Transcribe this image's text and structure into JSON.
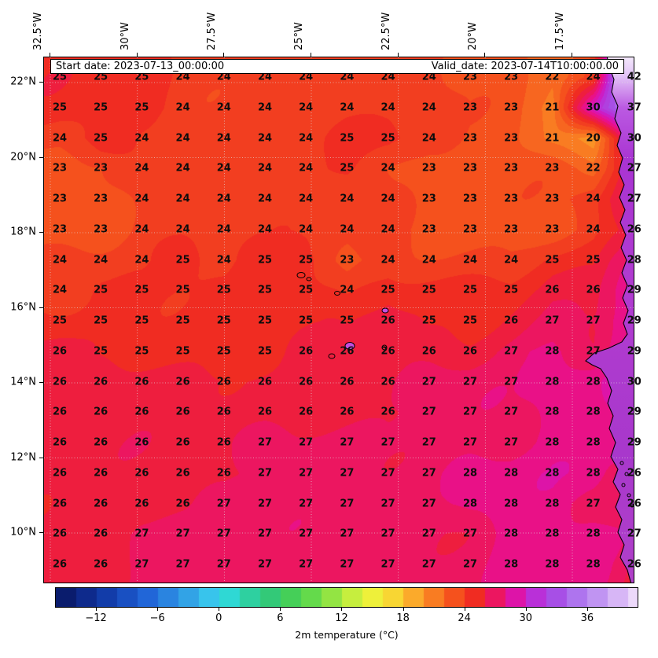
{
  "annotation": {
    "start_date": "Start date: 2023-07-13_00:00:00",
    "valid_date": "Valid_date: 2023-07-14T10:00:00.00"
  },
  "colorbar": {
    "label": "2m temperature (°C)",
    "tick_labels": [
      "−12",
      "−6",
      "0",
      "6",
      "12",
      "18",
      "24",
      "30",
      "36"
    ],
    "tick_values": [
      -12,
      -6,
      0,
      6,
      12,
      18,
      24,
      30,
      36
    ],
    "domain": [
      -16,
      41
    ]
  },
  "chart_data": {
    "type": "heatmap",
    "title": "",
    "units": "°C",
    "x_tick_labels": [
      "32.5°W",
      "30°W",
      "27.5°W",
      "25°W",
      "22.5°W",
      "20°W",
      "17.5°W"
    ],
    "y_tick_labels": [
      "22°N",
      "20°N",
      "18°N",
      "16°N",
      "14°N",
      "12°N",
      "10°N"
    ],
    "lon_ticks_deg_w": [
      32.5,
      30,
      27.5,
      25,
      22.5,
      20,
      17.5
    ],
    "lat_ticks_deg_n": [
      22,
      20,
      18,
      16,
      14,
      12,
      10
    ],
    "values_c": [
      [
        25,
        25,
        25,
        24,
        24,
        24,
        24,
        24,
        24,
        24,
        23,
        23,
        22,
        24,
        42
      ],
      [
        25,
        25,
        25,
        24,
        24,
        24,
        24,
        24,
        24,
        24,
        23,
        23,
        21,
        30,
        37
      ],
      [
        24,
        25,
        24,
        24,
        24,
        24,
        24,
        25,
        25,
        24,
        23,
        23,
        21,
        20,
        30
      ],
      [
        23,
        23,
        24,
        24,
        24,
        24,
        24,
        25,
        24,
        23,
        23,
        23,
        23,
        22,
        27
      ],
      [
        23,
        23,
        24,
        24,
        24,
        24,
        24,
        24,
        24,
        23,
        23,
        23,
        23,
        24,
        27
      ],
      [
        23,
        23,
        24,
        24,
        24,
        24,
        24,
        24,
        24,
        23,
        23,
        23,
        23,
        24,
        26
      ],
      [
        24,
        24,
        24,
        25,
        24,
        25,
        25,
        23,
        24,
        24,
        24,
        24,
        25,
        25,
        28
      ],
      [
        24,
        25,
        25,
        25,
        25,
        25,
        25,
        24,
        25,
        25,
        25,
        25,
        26,
        26,
        29
      ],
      [
        25,
        25,
        25,
        25,
        25,
        25,
        25,
        25,
        26,
        25,
        25,
        26,
        27,
        27,
        29
      ],
      [
        26,
        25,
        25,
        25,
        25,
        25,
        26,
        26,
        26,
        26,
        26,
        27,
        28,
        27,
        29
      ],
      [
        26,
        26,
        26,
        26,
        26,
        26,
        26,
        26,
        26,
        27,
        27,
        27,
        28,
        28,
        30
      ],
      [
        26,
        26,
        26,
        26,
        26,
        26,
        26,
        26,
        26,
        27,
        27,
        27,
        28,
        28,
        29
      ],
      [
        26,
        26,
        26,
        26,
        26,
        27,
        27,
        27,
        27,
        27,
        27,
        27,
        28,
        28,
        29
      ],
      [
        26,
        26,
        26,
        26,
        26,
        27,
        27,
        27,
        27,
        27,
        28,
        28,
        28,
        28,
        26
      ],
      [
        26,
        26,
        26,
        26,
        27,
        27,
        27,
        27,
        27,
        27,
        28,
        28,
        28,
        27,
        26
      ],
      [
        26,
        26,
        27,
        27,
        27,
        27,
        27,
        27,
        27,
        27,
        27,
        28,
        28,
        28,
        27
      ],
      [
        26,
        26,
        27,
        27,
        27,
        27,
        27,
        27,
        27,
        27,
        27,
        28,
        28,
        28,
        26
      ]
    ],
    "colormap_stops": [
      [
        -16,
        "#08155e"
      ],
      [
        -13,
        "#0e2a8c"
      ],
      [
        -10,
        "#1545b8"
      ],
      [
        -7,
        "#2166d8"
      ],
      [
        -4,
        "#2f93e4"
      ],
      [
        -1,
        "#38c4ec"
      ],
      [
        1,
        "#2fd8d4"
      ],
      [
        3,
        "#2ed0a0"
      ],
      [
        5,
        "#33c978"
      ],
      [
        7,
        "#45cf58"
      ],
      [
        9,
        "#64da4b"
      ],
      [
        11,
        "#93e443"
      ],
      [
        13,
        "#c6ee3e"
      ],
      [
        15,
        "#eef03a"
      ],
      [
        17,
        "#f8d633"
      ],
      [
        19,
        "#fbaa2b"
      ],
      [
        21,
        "#f97c22"
      ],
      [
        23,
        "#f5511d"
      ],
      [
        25,
        "#f02c22"
      ],
      [
        26,
        "#ee1e3e"
      ],
      [
        27,
        "#ec1660"
      ],
      [
        28,
        "#e91187"
      ],
      [
        29,
        "#dd14a8"
      ],
      [
        30,
        "#cc1cc4"
      ],
      [
        31,
        "#b930d8"
      ],
      [
        33,
        "#a74fe6"
      ],
      [
        35,
        "#ae74ee"
      ],
      [
        37,
        "#c094f2"
      ],
      [
        39,
        "#d7b6f6"
      ],
      [
        41,
        "#ecd9fa"
      ],
      [
        42.5,
        "#faf2fd"
      ]
    ]
  }
}
